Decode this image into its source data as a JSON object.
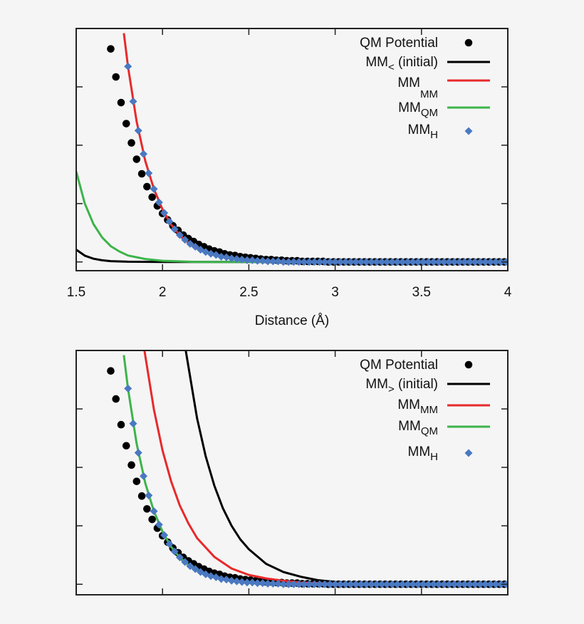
{
  "colors": {
    "background": "#f5f5f5",
    "qm": "#000000",
    "initial": "#000000",
    "mm_mm": "#e8292b",
    "mm_qm": "#3cb44a",
    "mm_h": "#4a79c1"
  },
  "chart_data": [
    {
      "type": "scatter+line",
      "xlabel": "Distance (Å)",
      "xlim": [
        1.5,
        4.0
      ],
      "ylim": [
        -0.15,
        4.0
      ],
      "xticks": [
        "1.5",
        "2",
        "2.5",
        "3",
        "3.5",
        "4"
      ],
      "yticks": [
        0,
        1,
        2,
        3
      ],
      "ytick_labels_shown": false,
      "grid": false,
      "legend_position": "top-right",
      "legend": [
        {
          "main": "QM Potential",
          "sub": "",
          "rest": "",
          "marker": "circle",
          "color": "#000000"
        },
        {
          "main": "MM",
          "sub": "<",
          "rest": " (initial)",
          "marker": "line",
          "color": "#000000"
        },
        {
          "main": "MM",
          "sub": "MM",
          "rest": "",
          "marker": "line",
          "color": "#e8292b"
        },
        {
          "main": "MM",
          "sub": "QM",
          "rest": "",
          "marker": "line",
          "color": "#3cb44a"
        },
        {
          "main": "MM",
          "sub": "H",
          "rest": "",
          "marker": "diamond",
          "color": "#4a79c1"
        }
      ],
      "series": [
        {
          "name": "QM Potential",
          "kind": "points",
          "marker": "circle",
          "color": "#000000",
          "x": [
            1.7,
            1.73,
            1.76,
            1.79,
            1.82,
            1.85,
            1.88,
            1.91,
            1.94,
            1.97,
            2.0,
            2.03,
            2.06,
            2.09,
            2.12,
            2.15,
            2.18,
            2.21,
            2.24,
            2.27,
            2.3,
            2.33,
            2.36,
            2.39,
            2.42,
            2.45,
            2.48,
            2.51,
            2.54,
            2.57,
            2.6,
            2.63,
            2.66,
            2.69,
            2.72,
            2.75,
            2.78,
            2.81,
            2.84,
            2.87,
            2.9,
            2.93,
            2.96,
            2.99,
            3.02,
            3.05,
            3.08,
            3.11,
            3.14,
            3.17,
            3.2,
            3.23,
            3.26,
            3.29,
            3.32,
            3.35,
            3.38,
            3.41,
            3.44,
            3.47,
            3.5,
            3.53,
            3.56,
            3.59,
            3.62,
            3.65,
            3.68,
            3.71,
            3.74,
            3.77,
            3.8,
            3.83,
            3.86,
            3.89,
            3.92,
            3.95,
            3.98
          ],
          "y": [
            3.65,
            3.17,
            2.73,
            2.37,
            2.04,
            1.76,
            1.51,
            1.29,
            1.11,
            0.96,
            0.83,
            0.72,
            0.62,
            0.54,
            0.46,
            0.4,
            0.35,
            0.3,
            0.26,
            0.22,
            0.19,
            0.17,
            0.14,
            0.12,
            0.11,
            0.09,
            0.08,
            0.07,
            0.06,
            0.05,
            0.04,
            0.04,
            0.03,
            0.03,
            0.02,
            0.02,
            0.02,
            0.01,
            0.01,
            0.01,
            0.01,
            0.01,
            0,
            0,
            0,
            0,
            0,
            0,
            0,
            0,
            0,
            0,
            0,
            0,
            0,
            0,
            0,
            0,
            0,
            0,
            0,
            0,
            0,
            0,
            0,
            0,
            0,
            0,
            0,
            0,
            0,
            0,
            0,
            0,
            0,
            0,
            0
          ]
        },
        {
          "name": "MM< (initial)",
          "kind": "line",
          "color": "#000000",
          "x": [
            1.5,
            1.55,
            1.6,
            1.65,
            1.7,
            1.8,
            2.0,
            4.0
          ],
          "y": [
            0.21,
            0.108,
            0.055,
            0.028,
            0.014,
            0.004,
            0,
            0
          ]
        },
        {
          "name": "MM_MM",
          "kind": "line",
          "color": "#e8292b",
          "x": [
            1.776,
            1.8,
            1.85,
            1.9,
            1.95,
            2.0,
            2.05,
            2.1,
            2.15,
            2.2,
            2.25,
            2.3,
            2.4,
            2.5,
            2.6,
            2.8,
            4.0
          ],
          "y": [
            3.92,
            3.35,
            2.41,
            1.73,
            1.25,
            0.9,
            0.64,
            0.46,
            0.33,
            0.24,
            0.17,
            0.12,
            0.06,
            0.03,
            0.02,
            0,
            0
          ]
        },
        {
          "name": "MM_QM",
          "kind": "line",
          "color": "#3cb44a",
          "x": [
            1.5,
            1.55,
            1.6,
            1.65,
            1.7,
            1.75,
            1.8,
            1.9,
            2.0,
            2.2,
            4.0
          ],
          "y": [
            1.55,
            1.0,
            0.65,
            0.42,
            0.27,
            0.18,
            0.11,
            0.05,
            0.02,
            0,
            0
          ]
        },
        {
          "name": "MM_H",
          "kind": "points",
          "marker": "diamond",
          "color": "#4a79c1",
          "x": [
            1.8,
            1.83,
            1.86,
            1.89,
            1.92,
            1.95,
            1.98,
            2.01,
            2.04,
            2.07,
            2.1,
            2.13,
            2.16,
            2.19,
            2.22,
            2.25,
            2.28,
            2.31,
            2.34,
            2.37,
            2.4,
            2.43,
            2.46,
            2.49,
            2.52,
            2.55,
            2.58,
            2.61,
            2.64,
            2.67,
            2.7,
            2.73,
            2.76,
            2.79,
            2.82,
            2.85,
            2.88,
            2.91,
            2.94,
            2.97,
            3.0,
            3.03,
            3.06,
            3.09,
            3.12,
            3.15,
            3.18,
            3.21,
            3.24,
            3.27,
            3.3,
            3.33,
            3.36,
            3.39,
            3.42,
            3.45,
            3.48,
            3.51,
            3.54,
            3.57,
            3.6,
            3.63,
            3.66,
            3.69,
            3.72,
            3.75,
            3.78,
            3.81,
            3.84,
            3.87,
            3.9,
            3.93,
            3.96,
            3.99
          ],
          "y": [
            3.35,
            2.75,
            2.25,
            1.85,
            1.52,
            1.25,
            1.02,
            0.84,
            0.69,
            0.56,
            0.46,
            0.38,
            0.31,
            0.26,
            0.21,
            0.17,
            0.14,
            0.12,
            0.09,
            0.08,
            0.06,
            0.05,
            0.04,
            0.03,
            0.03,
            0.02,
            0.02,
            0.01,
            0.01,
            0.01,
            0,
            0,
            0,
            0,
            0,
            0,
            0,
            0,
            0,
            0,
            0,
            0,
            0,
            0,
            0,
            0,
            0,
            0,
            0,
            0,
            0,
            0,
            0,
            0,
            0,
            0,
            0,
            0,
            0,
            0,
            0,
            0,
            0,
            0,
            0,
            0,
            0,
            0,
            0,
            0,
            0,
            0,
            0,
            0
          ]
        }
      ]
    },
    {
      "type": "scatter+line",
      "xlabel": "",
      "xlim": [
        1.5,
        4.0
      ],
      "ylim": [
        -0.18,
        4.0
      ],
      "xticks": [],
      "xtick_values": [
        1.5,
        2,
        2.5,
        3,
        3.5,
        4
      ],
      "yticks": [
        0,
        1,
        2,
        3
      ],
      "ytick_labels_shown": false,
      "grid": false,
      "legend_position": "top-right",
      "legend": [
        {
          "main": "QM Potential",
          "sub": "",
          "rest": "",
          "marker": "circle",
          "color": "#000000"
        },
        {
          "main": "MM",
          "sub": ">",
          "rest": " (initial)",
          "marker": "line",
          "color": "#000000"
        },
        {
          "main": "MM",
          "sub": "MM",
          "rest": "",
          "marker": "line",
          "color": "#e8292b"
        },
        {
          "main": "MM",
          "sub": "QM",
          "rest": "",
          "marker": "line",
          "color": "#3cb44a"
        },
        {
          "main": "MM",
          "sub": "H",
          "rest": "",
          "marker": "diamond",
          "color": "#4a79c1"
        }
      ],
      "series": [
        {
          "name": "QM Potential",
          "kind": "points",
          "marker": "circle",
          "color": "#000000",
          "same_as": "top"
        },
        {
          "name": "MM> (initial)",
          "kind": "line",
          "color": "#000000",
          "x": [
            2.13,
            2.2,
            2.25,
            2.3,
            2.35,
            2.4,
            2.45,
            2.5,
            2.6,
            2.7,
            2.8,
            2.9,
            3.0,
            3.2,
            3.5,
            4.0
          ],
          "y": [
            4.08,
            2.84,
            2.19,
            1.69,
            1.3,
            1.0,
            0.77,
            0.6,
            0.35,
            0.21,
            0.13,
            0.07,
            0.04,
            0.01,
            0,
            0
          ]
        },
        {
          "name": "MM_MM",
          "kind": "line",
          "color": "#e8292b",
          "x": [
            1.89,
            1.95,
            2.0,
            2.05,
            2.1,
            2.15,
            2.2,
            2.3,
            2.4,
            2.5,
            2.6,
            2.7,
            2.8,
            3.0,
            3.2,
            4.0
          ],
          "y": [
            4.1,
            2.99,
            2.29,
            1.76,
            1.35,
            1.04,
            0.79,
            0.47,
            0.27,
            0.16,
            0.1,
            0.06,
            0.03,
            0.01,
            0,
            0
          ]
        },
        {
          "name": "MM_QM",
          "kind": "line",
          "color": "#3cb44a",
          "x": [
            1.776,
            1.8,
            1.85,
            1.9,
            1.95,
            2.0,
            2.05,
            2.1,
            2.15,
            2.2,
            2.25,
            2.3,
            2.4,
            2.5,
            2.6,
            2.8,
            4.0
          ],
          "y": [
            3.92,
            3.35,
            2.41,
            1.73,
            1.25,
            0.9,
            0.64,
            0.46,
            0.33,
            0.24,
            0.17,
            0.12,
            0.06,
            0.03,
            0.02,
            0,
            0
          ]
        },
        {
          "name": "MM_H",
          "kind": "points",
          "marker": "diamond",
          "color": "#4a79c1",
          "same_as": "top"
        }
      ]
    }
  ]
}
